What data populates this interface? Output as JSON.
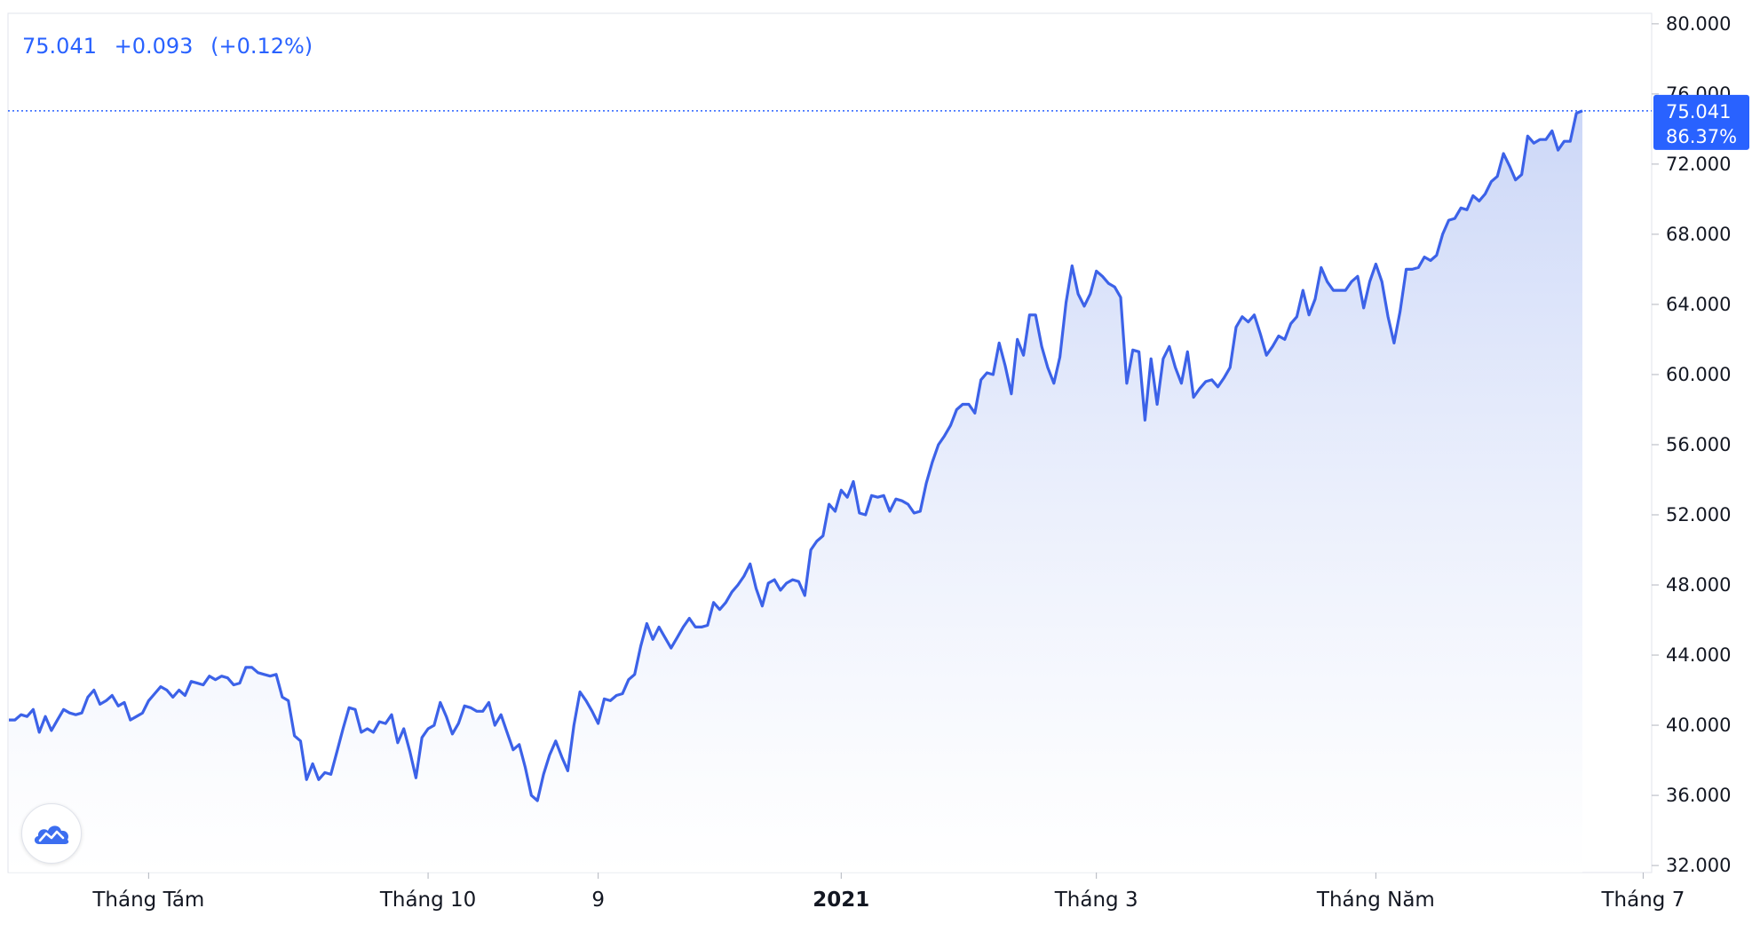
{
  "legend": {
    "last": "75.041",
    "change": "+0.093",
    "change_pct": "(+0.12%)"
  },
  "price_badge": {
    "value": "75.041",
    "percent": "86.37%"
  },
  "colors": {
    "line": "#3c62e8",
    "fill_top": "#c9d5f7",
    "fill_bottom": "#ffffff",
    "badge": "#2962ff",
    "axis_text": "#131722",
    "grid": "#e0e3eb"
  },
  "chart_data": {
    "type": "area",
    "title": "",
    "xlabel": "",
    "ylabel": "",
    "ylim": [
      31.6,
      80.6
    ],
    "grid": false,
    "y_ticks": [
      "32.000",
      "36.000",
      "40.000",
      "44.000",
      "48.000",
      "52.000",
      "56.000",
      "60.000",
      "64.000",
      "68.000",
      "72.000",
      "76.000",
      "80.000"
    ],
    "x_ticks": [
      {
        "label": "Tháng Tám",
        "index": 23,
        "bold": false
      },
      {
        "label": "Tháng 10",
        "index": 69,
        "bold": false
      },
      {
        "label": "9",
        "index": 97,
        "bold": false
      },
      {
        "label": "2021",
        "index": 137,
        "bold": true
      },
      {
        "label": "Tháng 3",
        "index": 179,
        "bold": false
      },
      {
        "label": "Tháng Năm",
        "index": 225,
        "bold": false
      },
      {
        "label": "Tháng 7",
        "index": 269,
        "bold": false
      }
    ],
    "series": [
      {
        "values": [
          40.3,
          40.3,
          40.6,
          40.5,
          40.9,
          39.6,
          40.5,
          39.7,
          40.3,
          40.9,
          40.7,
          40.6,
          40.7,
          41.6,
          42.0,
          41.2,
          41.4,
          41.7,
          41.1,
          41.3,
          40.3,
          40.5,
          40.7,
          41.4,
          41.8,
          42.2,
          42.0,
          41.6,
          42.0,
          41.7,
          42.5,
          42.4,
          42.3,
          42.8,
          42.6,
          42.8,
          42.7,
          42.3,
          42.4,
          43.3,
          43.3,
          43.0,
          42.9,
          42.8,
          42.9,
          41.6,
          41.4,
          39.4,
          39.1,
          36.9,
          37.8,
          36.9,
          37.3,
          37.2,
          38.5,
          39.8,
          41.0,
          40.9,
          39.6,
          39.8,
          39.6,
          40.2,
          40.1,
          40.6,
          39.0,
          39.8,
          38.5,
          37.0,
          39.3,
          39.8,
          40.0,
          41.3,
          40.5,
          39.5,
          40.1,
          41.1,
          41.0,
          40.8,
          40.8,
          41.3,
          40.0,
          40.6,
          39.6,
          38.6,
          38.9,
          37.6,
          36.0,
          35.7,
          37.2,
          38.3,
          39.1,
          38.2,
          37.4,
          40.0,
          41.9,
          41.4,
          40.8,
          40.1,
          41.5,
          41.4,
          41.7,
          41.8,
          42.6,
          42.9,
          44.5,
          45.8,
          44.9,
          45.6,
          45.0,
          44.4,
          45.0,
          45.6,
          46.1,
          45.6,
          45.6,
          45.7,
          47.0,
          46.6,
          47.0,
          47.6,
          48.0,
          48.5,
          49.2,
          47.8,
          46.8,
          48.1,
          48.3,
          47.7,
          48.1,
          48.3,
          48.2,
          47.4,
          50.0,
          50.5,
          50.8,
          52.6,
          52.2,
          53.4,
          53.0,
          53.9,
          52.1,
          52.0,
          53.1,
          53.0,
          53.1,
          52.2,
          52.9,
          52.8,
          52.6,
          52.1,
          52.2,
          53.8,
          55.0,
          56.0,
          56.5,
          57.1,
          58.0,
          58.3,
          58.3,
          57.8,
          59.7,
          60.1,
          60.0,
          61.8,
          60.5,
          58.9,
          62.0,
          61.1,
          63.4,
          63.4,
          61.6,
          60.4,
          59.5,
          61.0,
          64.1,
          66.2,
          64.6,
          63.9,
          64.6,
          65.9,
          65.6,
          65.2,
          65.0,
          64.4,
          59.5,
          61.4,
          61.3,
          57.4,
          60.9,
          58.3,
          60.9,
          61.6,
          60.4,
          59.5,
          61.3,
          58.7,
          59.2,
          59.6,
          59.7,
          59.3,
          59.8,
          60.4,
          62.7,
          63.3,
          63.0,
          63.4,
          62.3,
          61.1,
          61.6,
          62.2,
          62.0,
          62.9,
          63.3,
          64.8,
          63.4,
          64.3,
          66.1,
          65.3,
          64.8,
          64.8,
          64.8,
          65.3,
          65.6,
          63.8,
          65.3,
          66.3,
          65.3,
          63.3,
          61.8,
          63.6,
          66.0,
          66.0,
          66.1,
          66.7,
          66.5,
          66.8,
          68.0,
          68.8,
          68.9,
          69.5,
          69.4,
          70.2,
          69.9,
          70.3,
          71.0,
          71.3,
          72.6,
          71.9,
          71.1,
          71.4,
          73.6,
          73.2,
          73.4,
          73.4,
          73.9,
          72.8,
          73.3,
          73.3,
          74.9,
          75.041
        ]
      }
    ]
  }
}
